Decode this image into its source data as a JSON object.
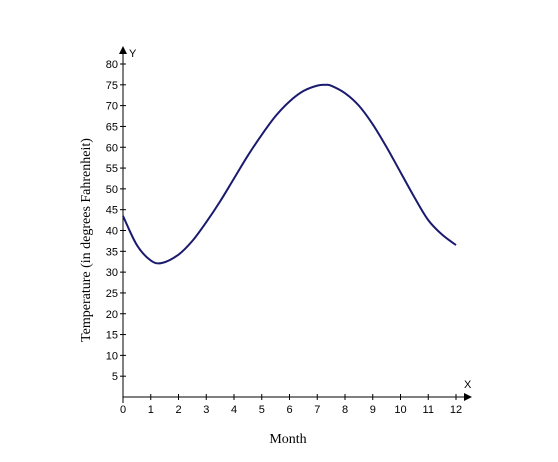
{
  "chart_data": {
    "type": "line",
    "title": "",
    "xlabel": "Month",
    "ylabel": "Temperature (in degrees Fahrenheit)",
    "x_axis_name": "X",
    "y_axis_name": "Y",
    "xlim": [
      0,
      12
    ],
    "ylim": [
      0,
      80
    ],
    "x_ticks": [
      0,
      1,
      2,
      3,
      4,
      5,
      6,
      7,
      8,
      9,
      10,
      11,
      12
    ],
    "y_ticks": [
      5,
      10,
      15,
      20,
      25,
      30,
      35,
      40,
      45,
      50,
      55,
      60,
      65,
      70,
      75,
      80
    ],
    "grid": false,
    "line_color": "#1a1a6e",
    "series": [
      {
        "x": [
          0,
          0.5,
          1,
          1.4,
          2,
          2.5,
          3,
          3.5,
          4,
          4.5,
          5,
          5.5,
          6,
          6.5,
          7,
          7.3,
          7.5,
          8,
          8.5,
          9,
          9.5,
          10,
          10.5,
          11,
          11.5,
          12
        ],
        "values": [
          43.5,
          36.5,
          32.8,
          32.2,
          34.2,
          37.5,
          42,
          47,
          52.5,
          58,
          63,
          67.5,
          71,
          73.5,
          74.8,
          75,
          74.8,
          73,
          70,
          65.5,
          60,
          54,
          48,
          42.5,
          39,
          36.5
        ]
      }
    ]
  }
}
